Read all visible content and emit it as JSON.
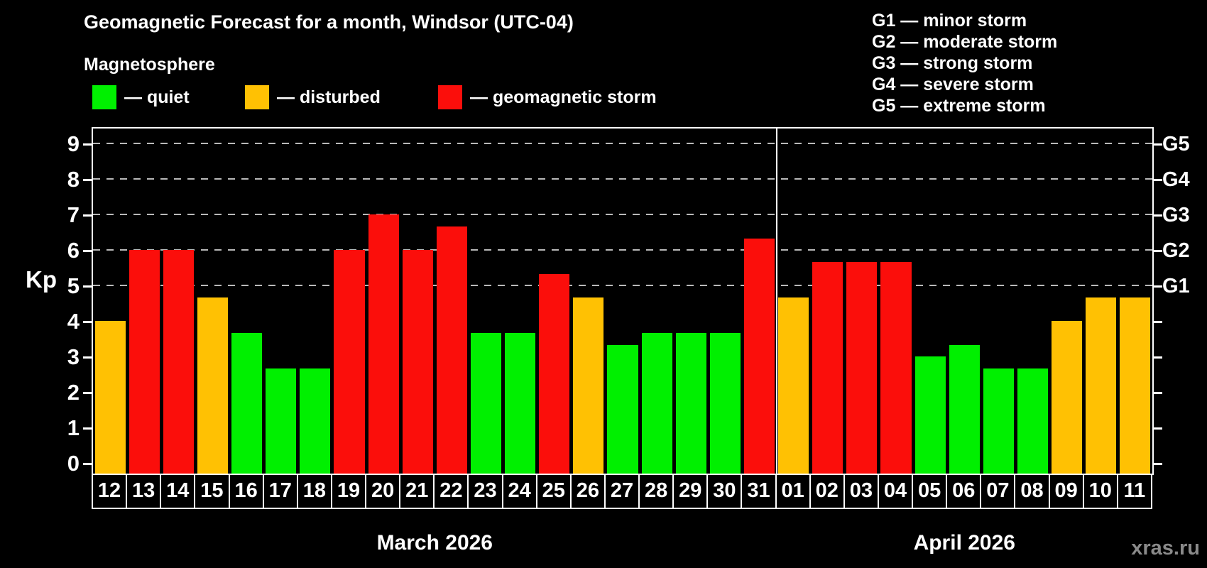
{
  "header": {
    "title": "Geomagnetic Forecast for a month, Windsor (UTC-04)",
    "subtitle": "Magnetosphere"
  },
  "legend": {
    "items": [
      {
        "key": "quiet",
        "label": "— quiet",
        "color": "#00f000"
      },
      {
        "key": "disturbed",
        "label": "— disturbed",
        "color": "#ffc103"
      },
      {
        "key": "storm",
        "label": "— geomagnetic storm",
        "color": "#fb0e0b"
      }
    ]
  },
  "g_legend": {
    "lines": [
      "G1 — minor storm",
      "G2 — moderate storm",
      "G3 — strong storm",
      "G4 — severe storm",
      "G5 — extreme storm"
    ]
  },
  "watermark": "xras.ru",
  "chart_data": {
    "type": "bar",
    "title": "Geomagnetic Forecast for a month, Windsor (UTC-04)",
    "subtitle": "Magnetosphere",
    "ylabel": "Kp",
    "ylim": [
      0,
      9
    ],
    "y_ticks": [
      0,
      1,
      2,
      3,
      4,
      5,
      6,
      7,
      8,
      9
    ],
    "right_axis_labels": [
      {
        "label": "G1",
        "kp": 5
      },
      {
        "label": "G2",
        "kp": 6
      },
      {
        "label": "G3",
        "kp": 7
      },
      {
        "label": "G4",
        "kp": 8
      },
      {
        "label": "G5",
        "kp": 9
      }
    ],
    "gridline_kp_levels": [
      5,
      6,
      7,
      8,
      9
    ],
    "grid": "dashed horizontal lines at G-storm levels only",
    "legend_position": "top-left swatches; G-scale legend top-right",
    "categories": [
      "12",
      "13",
      "14",
      "15",
      "16",
      "17",
      "18",
      "19",
      "20",
      "21",
      "22",
      "23",
      "24",
      "25",
      "26",
      "27",
      "28",
      "29",
      "30",
      "31",
      "01",
      "02",
      "03",
      "04",
      "05",
      "06",
      "07",
      "08",
      "09",
      "10",
      "11"
    ],
    "series": [
      {
        "name": "Kp forecast",
        "values": [
          4.0,
          6.0,
          6.0,
          4.67,
          3.67,
          2.67,
          2.67,
          6.0,
          7.0,
          6.0,
          6.67,
          3.67,
          3.67,
          5.33,
          4.67,
          3.33,
          3.67,
          3.67,
          3.67,
          6.33,
          4.67,
          5.67,
          5.67,
          5.67,
          3.0,
          3.33,
          2.67,
          2.67,
          4.0,
          4.67,
          4.67
        ]
      }
    ],
    "bar_status": [
      "disturbed",
      "storm",
      "storm",
      "disturbed",
      "quiet",
      "quiet",
      "quiet",
      "storm",
      "storm",
      "storm",
      "storm",
      "quiet",
      "quiet",
      "storm",
      "disturbed",
      "quiet",
      "quiet",
      "quiet",
      "quiet",
      "storm",
      "disturbed",
      "storm",
      "storm",
      "storm",
      "quiet",
      "quiet",
      "quiet",
      "quiet",
      "disturbed",
      "disturbed",
      "disturbed"
    ],
    "status_colors": {
      "quiet": "#00f000",
      "disturbed": "#ffc103",
      "storm": "#fb0e0b"
    },
    "months": [
      {
        "label": "March 2026",
        "days": 20
      },
      {
        "label": "April 2026",
        "days": 11
      }
    ],
    "separator_after_index": 19
  }
}
